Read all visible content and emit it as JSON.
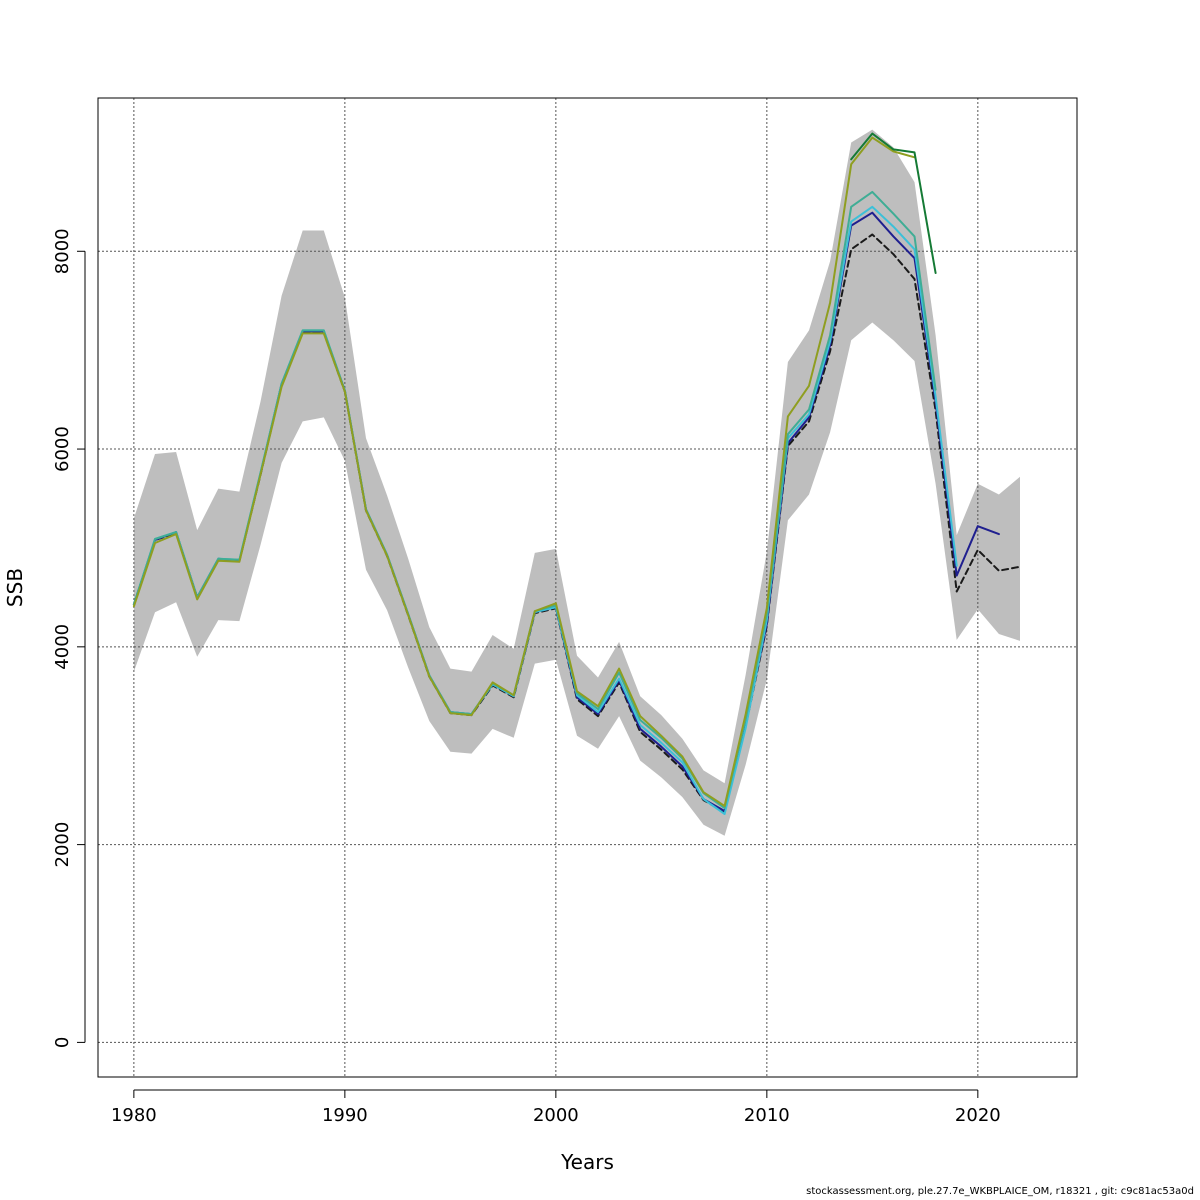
{
  "chart_data": {
    "type": "line",
    "xlabel": "Years",
    "ylabel": "SSB",
    "xlim": [
      1978.3,
      2024.7
    ],
    "ylim": [
      -350,
      9550
    ],
    "x_ticks": [
      1980,
      1990,
      2000,
      2010,
      2020
    ],
    "y_ticks": [
      0,
      2000,
      4000,
      6000,
      8000
    ],
    "grid": true,
    "colors": {
      "band": "#bebebe",
      "grid": "#555555",
      "frame": "#000000"
    },
    "confidence_band": {
      "x": [
        1980,
        1981,
        1982,
        1983,
        1984,
        1985,
        1986,
        1987,
        1988,
        1989,
        1990,
        1991,
        1992,
        1993,
        1994,
        1995,
        1996,
        1997,
        1998,
        1999,
        2000,
        2001,
        2002,
        2003,
        2004,
        2005,
        2006,
        2007,
        2008,
        2009,
        2010,
        2011,
        2012,
        2013,
        2014,
        2015,
        2016,
        2017,
        2018,
        2019,
        2020,
        2021,
        2022
      ],
      "lower": [
        3750,
        4350,
        4450,
        3900,
        4270,
        4260,
        5030,
        5860,
        6280,
        6320,
        5880,
        4780,
        4370,
        3790,
        3250,
        2940,
        2920,
        3170,
        3080,
        3830,
        3870,
        3100,
        2970,
        3300,
        2850,
        2680,
        2480,
        2200,
        2090,
        2810,
        3670,
        5280,
        5540,
        6170,
        7100,
        7280,
        7100,
        6890,
        5650,
        4070,
        4380,
        4130,
        4060
      ],
      "upper": [
        5300,
        5950,
        5970,
        5180,
        5600,
        5570,
        6480,
        7550,
        8210,
        8210,
        7530,
        6110,
        5530,
        4890,
        4200,
        3780,
        3750,
        4120,
        3980,
        4950,
        4990,
        3910,
        3690,
        4050,
        3500,
        3310,
        3070,
        2750,
        2620,
        3720,
        4960,
        6880,
        7200,
        7900,
        9100,
        9230,
        9050,
        8700,
        7150,
        5130,
        5650,
        5540,
        5720
      ]
    },
    "series": [
      {
        "color": "#1a1a1a",
        "dashed": true,
        "x": [
          1980,
          1981,
          1982,
          1983,
          1984,
          1985,
          1986,
          1987,
          1988,
          1989,
          1990,
          1991,
          1992,
          1993,
          1994,
          1995,
          1996,
          1997,
          1998,
          1999,
          2000,
          2001,
          2002,
          2003,
          2004,
          2005,
          2006,
          2007,
          2008,
          2009,
          2010,
          2011,
          2012,
          2013,
          2014,
          2015,
          2016,
          2017,
          2018,
          2019,
          2020,
          2021,
          2022
        ],
        "values": [
          4430,
          5080,
          5150,
          4500,
          4880,
          4870,
          5740,
          6650,
          7180,
          7180,
          6580,
          5380,
          4920,
          4320,
          3700,
          3330,
          3310,
          3610,
          3490,
          4340,
          4390,
          3470,
          3300,
          3640,
          3140,
          2960,
          2760,
          2450,
          2330,
          3200,
          4210,
          6030,
          6280,
          6990,
          8020,
          8170,
          7970,
          7720,
          6390,
          4560,
          4980,
          4770,
          4810
        ]
      },
      {
        "color": "#1f1f8f",
        "x": [
          1980,
          1981,
          1982,
          1983,
          1984,
          1985,
          1986,
          1987,
          1988,
          1989,
          1990,
          1991,
          1992,
          1993,
          1994,
          1995,
          1996,
          1997,
          1998,
          1999,
          2000,
          2001,
          2002,
          2003,
          2004,
          2005,
          2006,
          2007,
          2008,
          2009,
          2010,
          2011,
          2012,
          2013,
          2014,
          2015,
          2016,
          2017,
          2018,
          2019,
          2020,
          2021
        ],
        "values": [
          4430,
          5080,
          5160,
          4500,
          4890,
          4870,
          5750,
          6660,
          7190,
          7190,
          6590,
          5390,
          4930,
          4330,
          3710,
          3340,
          3320,
          3620,
          3500,
          4350,
          4400,
          3490,
          3320,
          3660,
          3170,
          2990,
          2790,
          2460,
          2340,
          3220,
          4230,
          6060,
          6320,
          7050,
          8260,
          8390,
          8150,
          7930,
          6480,
          4720,
          5220,
          5140
        ]
      },
      {
        "color": "#3cc0d8",
        "x": [
          1980,
          1981,
          1982,
          1983,
          1984,
          1985,
          1986,
          1987,
          1988,
          1989,
          1990,
          1991,
          1992,
          1993,
          1994,
          1995,
          1996,
          1997,
          1998,
          1999,
          2000,
          2001,
          2002,
          2003,
          2004,
          2005,
          2006,
          2007,
          2008,
          2009,
          2010,
          2011,
          2012,
          2013,
          2014,
          2015,
          2016,
          2017,
          2018,
          2019
        ],
        "values": [
          4430,
          5090,
          5160,
          4500,
          4890,
          4880,
          5760,
          6660,
          7200,
          7200,
          6590,
          5390,
          4930,
          4330,
          3710,
          3340,
          3320,
          3620,
          3500,
          4350,
          4400,
          3510,
          3340,
          3680,
          3210,
          3030,
          2830,
          2460,
          2310,
          3180,
          4270,
          6110,
          6350,
          7090,
          8300,
          8450,
          8250,
          8020,
          6530,
          4820
        ]
      },
      {
        "color": "#3fad95",
        "x": [
          1980,
          1981,
          1982,
          1983,
          1984,
          1985,
          1986,
          1987,
          1988,
          1989,
          1990,
          1991,
          1992,
          1993,
          1994,
          1995,
          1996,
          1997,
          1998,
          1999,
          2000,
          2001,
          2002,
          2003,
          2004,
          2005,
          2006,
          2007,
          2008,
          2009,
          2010,
          2011,
          2012,
          2013,
          2014,
          2015,
          2016,
          2017,
          2018
        ],
        "values": [
          4430,
          5090,
          5160,
          4500,
          4890,
          4880,
          5760,
          6660,
          7200,
          7200,
          6590,
          5390,
          4930,
          4330,
          3710,
          3340,
          3320,
          3630,
          3510,
          4360,
          4420,
          3530,
          3370,
          3740,
          3260,
          3080,
          2870,
          2520,
          2370,
          3270,
          4330,
          6150,
          6400,
          7150,
          8450,
          8600,
          8380,
          8150,
          6600
        ]
      },
      {
        "color": "#8f9e20",
        "x": [
          1980,
          1981,
          1982,
          1983,
          1984,
          1985,
          1986,
          1987,
          1988,
          1989,
          1990,
          1991,
          1992,
          1993,
          1994,
          1995,
          1996,
          1997,
          1998,
          1999,
          2000,
          2001,
          2002,
          2003,
          2004,
          2005,
          2006,
          2007,
          2008,
          2009,
          2010,
          2011,
          2012,
          2013,
          2014,
          2015,
          2016,
          2017
        ],
        "values": [
          4410,
          5050,
          5140,
          4480,
          4870,
          4860,
          5740,
          6630,
          7170,
          7170,
          6580,
          5380,
          4920,
          4320,
          3700,
          3330,
          3310,
          3640,
          3510,
          4360,
          4440,
          3550,
          3400,
          3780,
          3300,
          3100,
          2890,
          2530,
          2390,
          3320,
          4390,
          6330,
          6640,
          7480,
          8880,
          9150,
          9010,
          8950
        ]
      },
      {
        "color": "#157a35",
        "x": [
          2014,
          2015,
          2016,
          2017,
          2018
        ],
        "values": [
          8930,
          9190,
          9030,
          9000,
          7780
        ]
      }
    ]
  },
  "footer_text": "stockassessment.org, ple.27.7e_WKBPLAICE_OM, r18321 , git: c9c81ac53a0d"
}
